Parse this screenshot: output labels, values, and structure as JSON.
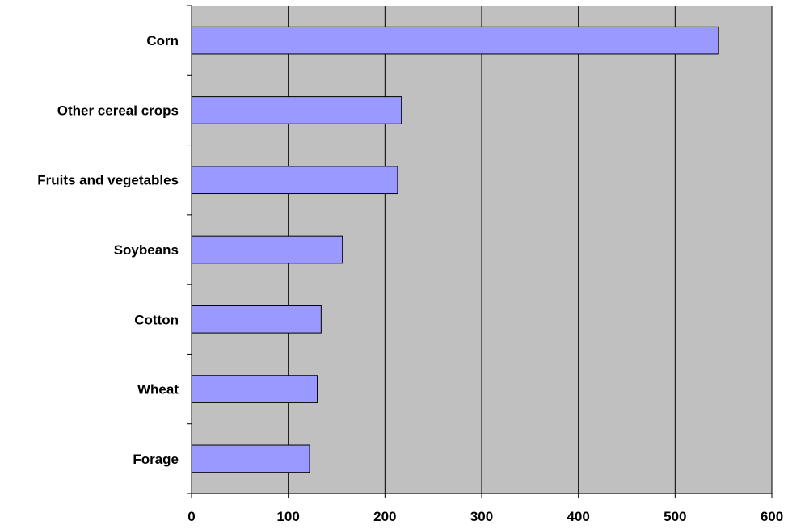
{
  "chart_data": {
    "type": "bar",
    "orientation": "horizontal",
    "title": "",
    "xlabel": "",
    "ylabel": "",
    "categories": [
      "Corn",
      "Other cereal crops",
      "Fruits and vegetables",
      "Soybeans",
      "Cotton",
      "Wheat",
      "Forage"
    ],
    "values": [
      545,
      217,
      213,
      156,
      134,
      130,
      122
    ],
    "xlim": [
      0,
      600
    ],
    "xticks": [
      0,
      100,
      200,
      300,
      400,
      500,
      600
    ],
    "grid": "vertical",
    "legend": "none",
    "colors": {
      "bar_fill": "#9999ff",
      "bar_stroke": "#000000",
      "plot_background": "#c0c0c0",
      "gridline": "#000000"
    }
  }
}
